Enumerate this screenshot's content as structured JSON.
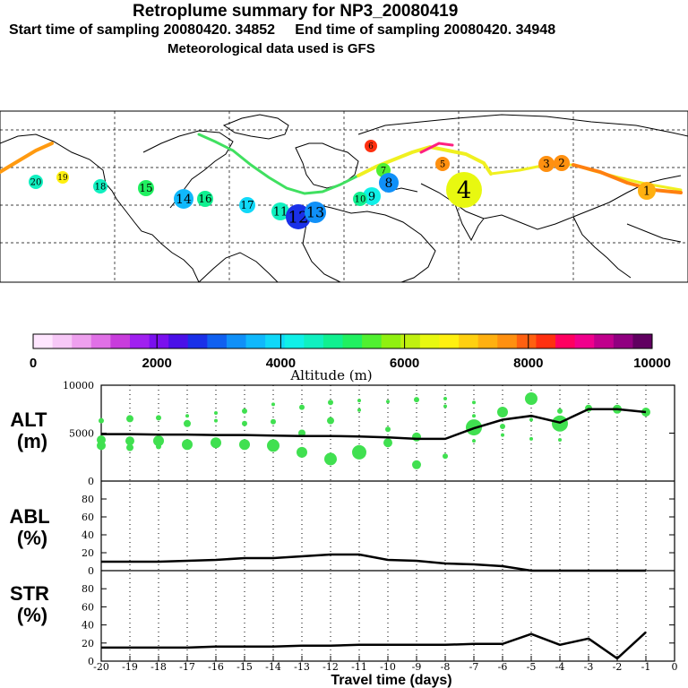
{
  "header": {
    "title": "Retroplume summary for NP3_20080419",
    "start_label": "Start time of sampling 20080420. 34852",
    "end_label": "End time of sampling 20080420. 34948",
    "met_label": "Meteorological data used is GFS"
  },
  "colorbar": {
    "title": "Altitude (m)",
    "ticks": [
      "0",
      "2000",
      "4000",
      "6000",
      "8000",
      "10000"
    ],
    "colors": [
      "#ffe6ff",
      "#f7c8f7",
      "#eea0ee",
      "#e070e6",
      "#c83cdc",
      "#a020f0",
      "#7a10ee",
      "#4a10e8",
      "#1a30e8",
      "#1060f0",
      "#1090f8",
      "#10b8fc",
      "#10d8f8",
      "#10f0e8",
      "#10f0c0",
      "#10f090",
      "#20f060",
      "#50f030",
      "#90f010",
      "#c0f010",
      "#e8f810",
      "#fff010",
      "#ffd010",
      "#ffb010",
      "#ff9010",
      "#ff6010",
      "#ff3010",
      "#ff0060",
      "#f0008c",
      "#c0008c",
      "#900080",
      "#600060"
    ]
  },
  "map": {
    "clusters": [
      {
        "label": "1",
        "alt": 7200,
        "size": 10
      },
      {
        "label": "2",
        "alt": 7500,
        "size": 9
      },
      {
        "label": "3",
        "alt": 7600,
        "size": 9
      },
      {
        "label": "4",
        "alt": 6400,
        "size": 20
      },
      {
        "label": "5",
        "alt": 7800,
        "size": 8
      },
      {
        "label": "6",
        "alt": 8200,
        "size": 7
      },
      {
        "label": "7",
        "alt": 5500,
        "size": 8
      },
      {
        "label": "8",
        "alt": 3300,
        "size": 11
      },
      {
        "label": "9",
        "alt": 4300,
        "size": 10
      },
      {
        "label": "10",
        "alt": 4900,
        "size": 8
      },
      {
        "label": "11",
        "alt": 4600,
        "size": 10
      },
      {
        "label": "12",
        "alt": 2800,
        "size": 14
      },
      {
        "label": "13",
        "alt": 3200,
        "size": 12
      },
      {
        "label": "14",
        "alt": 3600,
        "size": 11
      },
      {
        "label": "15",
        "alt": 5000,
        "size": 9
      },
      {
        "label": "16",
        "alt": 4900,
        "size": 9
      },
      {
        "label": "17",
        "alt": 3900,
        "size": 9
      },
      {
        "label": "18",
        "alt": 4400,
        "size": 8
      },
      {
        "label": "19",
        "alt": 6800,
        "size": 7
      },
      {
        "label": "20",
        "alt": 4500,
        "size": 8
      }
    ]
  },
  "chart_data": [
    {
      "type": "scatter",
      "panel": "ALT",
      "ylabel": "ALT (m)",
      "ylim": [
        0,
        10000
      ],
      "yticks": [
        0,
        5000,
        10000
      ],
      "xlim": [
        -20,
        0
      ],
      "median_line": {
        "x": [
          -20,
          -19,
          -18,
          -17,
          -16,
          -15,
          -14,
          -13,
          -12,
          -11,
          -10,
          -9,
          -8,
          -7,
          -6,
          -5,
          -4,
          -3,
          -2,
          -1
        ],
        "y": [
          4900,
          4900,
          4850,
          4850,
          4800,
          4800,
          4750,
          4700,
          4700,
          4650,
          4550,
          4400,
          4400,
          5500,
          6400,
          6800,
          6100,
          7500,
          7500,
          7200
        ]
      },
      "dots": [
        {
          "x": -20,
          "y": 6300,
          "r": 3
        },
        {
          "x": -20,
          "y": 4300,
          "r": 5
        },
        {
          "x": -20,
          "y": 3700,
          "r": 5
        },
        {
          "x": -19,
          "y": 6500,
          "r": 4
        },
        {
          "x": -19,
          "y": 4200,
          "r": 5
        },
        {
          "x": -19,
          "y": 3500,
          "r": 4
        },
        {
          "x": -18,
          "y": 6600,
          "r": 3
        },
        {
          "x": -18,
          "y": 4200,
          "r": 6
        },
        {
          "x": -18,
          "y": 3600,
          "r": 3
        },
        {
          "x": -17,
          "y": 6000,
          "r": 4
        },
        {
          "x": -17,
          "y": 6800,
          "r": 2
        },
        {
          "x": -17,
          "y": 3800,
          "r": 6
        },
        {
          "x": -16,
          "y": 7100,
          "r": 2
        },
        {
          "x": -16,
          "y": 6300,
          "r": 2
        },
        {
          "x": -16,
          "y": 4000,
          "r": 6
        },
        {
          "x": -15,
          "y": 7300,
          "r": 3
        },
        {
          "x": -15,
          "y": 6000,
          "r": 3
        },
        {
          "x": -15,
          "y": 3800,
          "r": 6
        },
        {
          "x": -14,
          "y": 8000,
          "r": 2
        },
        {
          "x": -14,
          "y": 6200,
          "r": 3
        },
        {
          "x": -14,
          "y": 3700,
          "r": 7
        },
        {
          "x": -13,
          "y": 7700,
          "r": 3
        },
        {
          "x": -13,
          "y": 5000,
          "r": 4
        },
        {
          "x": -13,
          "y": 3000,
          "r": 6
        },
        {
          "x": -12,
          "y": 8200,
          "r": 3
        },
        {
          "x": -12,
          "y": 6300,
          "r": 4
        },
        {
          "x": -12,
          "y": 2300,
          "r": 7
        },
        {
          "x": -11,
          "y": 8400,
          "r": 2
        },
        {
          "x": -11,
          "y": 7400,
          "r": 2
        },
        {
          "x": -11,
          "y": 3000,
          "r": 8
        },
        {
          "x": -10,
          "y": 8300,
          "r": 2
        },
        {
          "x": -10,
          "y": 5400,
          "r": 3
        },
        {
          "x": -10,
          "y": 4000,
          "r": 5
        },
        {
          "x": -9,
          "y": 8500,
          "r": 3
        },
        {
          "x": -9,
          "y": 4600,
          "r": 5
        },
        {
          "x": -9,
          "y": 1700,
          "r": 5
        },
        {
          "x": -8,
          "y": 8600,
          "r": 2
        },
        {
          "x": -8,
          "y": 7800,
          "r": 2
        },
        {
          "x": -8,
          "y": 2600,
          "r": 3
        },
        {
          "x": -7,
          "y": 8200,
          "r": 2
        },
        {
          "x": -7,
          "y": 6800,
          "r": 2
        },
        {
          "x": -7,
          "y": 5600,
          "r": 9
        },
        {
          "x": -7,
          "y": 4200,
          "r": 2
        },
        {
          "x": -6,
          "y": 7200,
          "r": 6
        },
        {
          "x": -6,
          "y": 5700,
          "r": 3
        },
        {
          "x": -6,
          "y": 4800,
          "r": 2
        },
        {
          "x": -5,
          "y": 8600,
          "r": 7
        },
        {
          "x": -5,
          "y": 6400,
          "r": 2
        },
        {
          "x": -5,
          "y": 4400,
          "r": 2
        },
        {
          "x": -4,
          "y": 7300,
          "r": 3
        },
        {
          "x": -4,
          "y": 6000,
          "r": 9
        },
        {
          "x": -4,
          "y": 4300,
          "r": 2
        },
        {
          "x": -3,
          "y": 7600,
          "r": 4
        },
        {
          "x": -2,
          "y": 7500,
          "r": 5
        },
        {
          "x": -1,
          "y": 7200,
          "r": 5
        }
      ]
    },
    {
      "type": "line",
      "panel": "ABL",
      "ylabel": "ABL (%)",
      "ylim": [
        0,
        100
      ],
      "yticks": [
        0,
        20,
        40,
        60,
        80
      ],
      "x": [
        -20,
        -19,
        -18,
        -17,
        -16,
        -15,
        -14,
        -13,
        -12,
        -11,
        -10,
        -9,
        -8,
        -7,
        -6,
        -5,
        -4,
        -3,
        -2,
        -1
      ],
      "y": [
        10,
        10,
        10,
        11,
        12,
        14,
        14,
        16,
        18,
        18,
        12,
        11,
        8,
        7,
        5,
        0,
        0,
        0,
        0,
        0
      ]
    },
    {
      "type": "line",
      "panel": "STR",
      "ylabel": "STR (%)",
      "ylim": [
        0,
        100
      ],
      "yticks": [
        0,
        20,
        40,
        60,
        80
      ],
      "xlabel": "Travel time (days)",
      "xticks": [
        "-20",
        "-19",
        "-18",
        "-17",
        "-16",
        "-15",
        "-14",
        "-13",
        "-12",
        "-11",
        "-10",
        "-9",
        "-8",
        "-7",
        "-6",
        "-5",
        "-4",
        "-3",
        "-2",
        "-1",
        "0"
      ],
      "x": [
        -20,
        -19,
        -18,
        -17,
        -16,
        -15,
        -14,
        -13,
        -12,
        -11,
        -10,
        -9,
        -8,
        -7,
        -6,
        -5,
        -4,
        -3,
        -2,
        -1
      ],
      "y": [
        15,
        15,
        15,
        15,
        16,
        16,
        16,
        17,
        17,
        18,
        18,
        18,
        18,
        19,
        19,
        30,
        18,
        25,
        3,
        32
      ]
    }
  ]
}
